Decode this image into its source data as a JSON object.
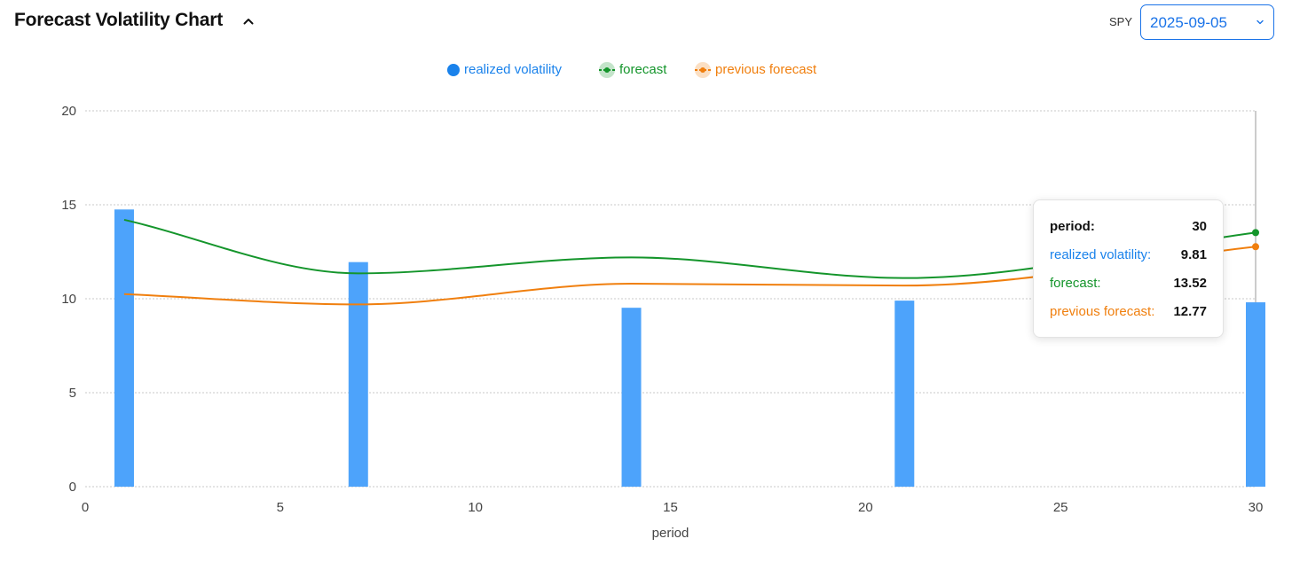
{
  "header": {
    "title": "Forecast Volatility Chart",
    "ticker": "SPY",
    "date_value": "2025-09-05"
  },
  "colors": {
    "realized": "#4da3fb",
    "realized_legend": "#1a82eb",
    "forecast": "#14952b",
    "previous_forecast": "#f07f0e"
  },
  "tooltip": {
    "period_label": "period:",
    "period_value": "30",
    "realized_label": "realized volatility:",
    "realized_value": "9.81",
    "forecast_label": "forecast:",
    "forecast_value": "13.52",
    "previous_label": "previous forecast:",
    "previous_value": "12.77"
  },
  "chart_data": {
    "type": "bar",
    "title": "",
    "xlabel": "period",
    "ylabel": "",
    "xlim": [
      0,
      30
    ],
    "ylim": [
      0,
      20
    ],
    "x_ticks": [
      0,
      5,
      10,
      15,
      20,
      25,
      30
    ],
    "y_ticks": [
      0,
      5,
      10,
      15,
      20
    ],
    "grid": true,
    "legend_position": "top-center",
    "series": [
      {
        "name": "realized volatility",
        "type": "bar",
        "x": [
          1,
          7,
          14,
          21,
          30
        ],
        "values": [
          14.75,
          11.95,
          9.52,
          9.9,
          9.81
        ]
      },
      {
        "name": "forecast",
        "type": "line",
        "x": [
          1,
          7,
          14,
          21,
          30
        ],
        "values": [
          14.2,
          11.35,
          12.2,
          11.1,
          13.52
        ]
      },
      {
        "name": "previous forecast",
        "type": "line",
        "x": [
          1,
          7,
          14,
          21,
          30
        ],
        "values": [
          10.25,
          9.7,
          10.8,
          10.7,
          12.77
        ]
      }
    ]
  }
}
